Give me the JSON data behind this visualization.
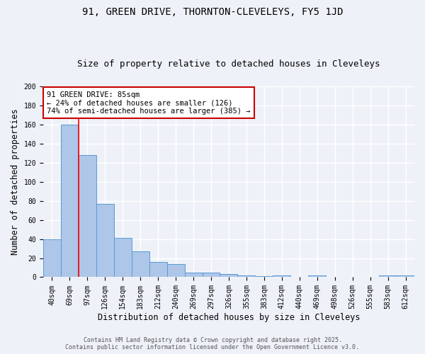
{
  "title1": "91, GREEN DRIVE, THORNTON-CLEVELEYS, FY5 1JD",
  "title2": "Size of property relative to detached houses in Cleveleys",
  "xlabel": "Distribution of detached houses by size in Cleveleys",
  "ylabel": "Number of detached properties",
  "categories": [
    "40sqm",
    "69sqm",
    "97sqm",
    "126sqm",
    "154sqm",
    "183sqm",
    "212sqm",
    "240sqm",
    "269sqm",
    "297sqm",
    "326sqm",
    "355sqm",
    "383sqm",
    "412sqm",
    "440sqm",
    "469sqm",
    "498sqm",
    "526sqm",
    "555sqm",
    "583sqm",
    "612sqm"
  ],
  "values": [
    40,
    160,
    128,
    77,
    41,
    27,
    16,
    14,
    5,
    5,
    3,
    2,
    1,
    2,
    0,
    2,
    0,
    0,
    0,
    2,
    2
  ],
  "bar_color": "#aec6e8",
  "bar_edge_color": "#5b9bd5",
  "red_line_x": 1.5,
  "annotation_line1": "91 GREEN DRIVE: 85sqm",
  "annotation_line2": "← 24% of detached houses are smaller (126)",
  "annotation_line3": "74% of semi-detached houses are larger (385) →",
  "annotation_box_color": "#ffffff",
  "annotation_edge_color": "#cc0000",
  "footer1": "Contains HM Land Registry data © Crown copyright and database right 2025.",
  "footer2": "Contains public sector information licensed under the Open Government Licence v3.0.",
  "ylim": [
    0,
    200
  ],
  "background_color": "#eef2f8",
  "grid_color": "#ffffff",
  "title_fontsize": 10,
  "subtitle_fontsize": 9,
  "tick_fontsize": 7,
  "label_fontsize": 8.5,
  "annot_fontsize": 7.5,
  "footer_fontsize": 6
}
